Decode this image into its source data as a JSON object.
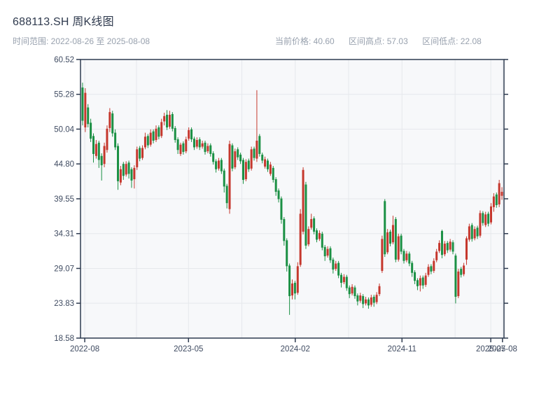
{
  "header": {
    "title": "688113.SH 周K线图",
    "subtitle": "时间范围: 2022-08-26 至 2025-08-08",
    "info": [
      "当前价格: 40.60",
      "区间高点: 57.03",
      "区间低点: 22.08"
    ]
  },
  "chart_data": {
    "type": "candlestick",
    "symbol": "688113.SH",
    "period": "weekly",
    "title": "688113.SH 周K线图",
    "date_start": "2022-08-26",
    "date_end": "2025-08-08",
    "current_price": 40.6,
    "range_high": 57.03,
    "range_low": 22.08,
    "ylim": [
      18.58,
      60.52
    ],
    "grid": true,
    "y_ticks": [
      {
        "value": 60.52,
        "label": "60.52"
      },
      {
        "value": 55.28,
        "label": "55.28"
      },
      {
        "value": 50.04,
        "label": "50.04"
      },
      {
        "value": 44.8,
        "label": "44.80"
      },
      {
        "value": 39.55,
        "label": "39.55"
      },
      {
        "value": 34.31,
        "label": "34.31"
      },
      {
        "value": 29.07,
        "label": "29.07"
      },
      {
        "value": 23.83,
        "label": "23.83"
      },
      {
        "value": 18.58,
        "label": "18.58"
      }
    ],
    "x_ticks": [
      {
        "week": 0.8,
        "label": "2022-08"
      },
      {
        "week": 38.9,
        "label": "2023-05"
      },
      {
        "week": 78.1,
        "label": "2024-02"
      },
      {
        "week": 117.3,
        "label": "2024-11"
      },
      {
        "week": 149.9,
        "label": "2025-07"
      },
      {
        "week": 154.2,
        "label": "2025-08"
      }
    ],
    "x_minor_weeks": [
      19.8,
      58.5,
      97.7,
      136.8
    ],
    "colors": {
      "up": "#c5372d",
      "down": "#1b9044",
      "grid": "#e6e8ec",
      "axis": "#2e3b50",
      "tick_label": "#3f4b61",
      "plot_bg": "#f7f8fa"
    },
    "ohlc_order": [
      "open",
      "high",
      "low",
      "close"
    ],
    "candles": [
      [
        56.3,
        57.03,
        50.6,
        51.3
      ],
      [
        50.3,
        56.2,
        49.6,
        55.5
      ],
      [
        53.3,
        53.8,
        50.3,
        50.8
      ],
      [
        51.0,
        51.6,
        48.1,
        48.6
      ],
      [
        49.0,
        49.4,
        45.0,
        46.3
      ],
      [
        46.0,
        48.4,
        45.6,
        47.8
      ],
      [
        48.0,
        48.3,
        44.2,
        45.4
      ],
      [
        46.0,
        46.4,
        42.3,
        44.6
      ],
      [
        44.8,
        48.0,
        44.3,
        47.5
      ],
      [
        46.9,
        50.6,
        46.5,
        50.1
      ],
      [
        50.2,
        53.2,
        49.6,
        52.6
      ],
      [
        52.4,
        52.8,
        48.9,
        49.4
      ],
      [
        49.5,
        50.0,
        46.9,
        47.3
      ],
      [
        47.5,
        47.9,
        40.9,
        42.2
      ],
      [
        42.0,
        44.5,
        41.6,
        44.0
      ],
      [
        44.8,
        45.1,
        42.4,
        43.0
      ],
      [
        43.2,
        45.2,
        42.9,
        44.8
      ],
      [
        45.0,
        45.3,
        42.6,
        43.3
      ],
      [
        44.0,
        44.3,
        41.2,
        42.3
      ],
      [
        42.5,
        44.6,
        41.1,
        44.2
      ],
      [
        44.3,
        47.4,
        43.9,
        47.0
      ],
      [
        47.2,
        47.5,
        45.2,
        45.6
      ],
      [
        45.7,
        47.6,
        45.4,
        47.2
      ],
      [
        47.3,
        49.5,
        47.0,
        48.9
      ],
      [
        49.0,
        49.3,
        47.2,
        47.6
      ],
      [
        47.7,
        50.0,
        47.4,
        49.5
      ],
      [
        49.7,
        50.0,
        47.9,
        48.3
      ],
      [
        48.4,
        50.6,
        48.1,
        50.1
      ],
      [
        50.3,
        50.6,
        48.5,
        48.9
      ],
      [
        49.0,
        51.6,
        48.7,
        51.1
      ],
      [
        51.2,
        52.5,
        50.6,
        52.0
      ],
      [
        52.2,
        52.9,
        49.9,
        50.3
      ],
      [
        50.4,
        52.8,
        50.1,
        52.2
      ],
      [
        52.3,
        52.6,
        49.7,
        50.1
      ],
      [
        50.2,
        50.5,
        48.0,
        48.4
      ],
      [
        48.5,
        48.8,
        46.3,
        46.9
      ],
      [
        46.3,
        48.0,
        46.0,
        47.7
      ],
      [
        47.9,
        48.2,
        46.2,
        46.6
      ],
      [
        46.7,
        48.9,
        46.4,
        48.5
      ],
      [
        48.6,
        50.3,
        48.3,
        49.9
      ],
      [
        50.0,
        50.3,
        48.1,
        48.5
      ],
      [
        48.6,
        48.9,
        46.9,
        47.3
      ],
      [
        47.4,
        48.8,
        47.1,
        48.4
      ],
      [
        48.5,
        48.8,
        46.9,
        47.3
      ],
      [
        47.4,
        48.3,
        47.1,
        47.9
      ],
      [
        48.0,
        48.3,
        46.2,
        46.6
      ],
      [
        46.7,
        47.9,
        46.4,
        47.5
      ],
      [
        47.6,
        47.9,
        45.9,
        46.3
      ],
      [
        46.4,
        46.7,
        44.7,
        45.1
      ],
      [
        45.2,
        45.5,
        43.5,
        44.0
      ],
      [
        44.1,
        45.7,
        43.8,
        45.3
      ],
      [
        45.4,
        45.7,
        43.3,
        43.7
      ],
      [
        43.8,
        44.1,
        40.5,
        41.4
      ],
      [
        41.5,
        41.8,
        38.1,
        38.9
      ],
      [
        38.0,
        48.3,
        37.3,
        47.8
      ],
      [
        47.6,
        47.9,
        43.7,
        44.1
      ],
      [
        44.3,
        47.1,
        44.0,
        46.7
      ],
      [
        47.0,
        47.3,
        45.4,
        45.8
      ],
      [
        46.2,
        46.5,
        44.8,
        45.2
      ],
      [
        45.4,
        45.7,
        41.8,
        42.4
      ],
      [
        42.5,
        45.5,
        42.2,
        45.1
      ],
      [
        45.3,
        45.6,
        43.6,
        44.0
      ],
      [
        44.1,
        47.4,
        43.8,
        47.0
      ],
      [
        47.1,
        47.4,
        45.3,
        45.7
      ],
      [
        45.6,
        55.9,
        45.1,
        48.3
      ],
      [
        49.0,
        49.3,
        45.9,
        46.3
      ],
      [
        46.2,
        46.5,
        44.9,
        45.3
      ],
      [
        44.4,
        45.9,
        44.1,
        45.5
      ],
      [
        45.3,
        45.6,
        43.6,
        44.0
      ],
      [
        43.3,
        45.1,
        43.0,
        44.7
      ],
      [
        44.2,
        44.5,
        42.0,
        42.4
      ],
      [
        42.5,
        42.8,
        40.0,
        40.6
      ],
      [
        40.8,
        41.1,
        39.0,
        39.5
      ],
      [
        39.6,
        39.9,
        35.8,
        36.4
      ],
      [
        36.5,
        36.8,
        32.5,
        33.2
      ],
      [
        33.3,
        33.6,
        28.6,
        29.4
      ],
      [
        29.5,
        29.8,
        22.08,
        24.9
      ],
      [
        25.0,
        27.4,
        24.4,
        26.8
      ],
      [
        26.9,
        27.2,
        24.4,
        25.3
      ],
      [
        25.4,
        30.0,
        25.1,
        29.4
      ],
      [
        29.6,
        38.0,
        29.3,
        37.3
      ],
      [
        34.6,
        44.3,
        34.2,
        43.9
      ],
      [
        41.7,
        42.1,
        32.0,
        32.5
      ],
      [
        32.7,
        35.4,
        32.4,
        35.0
      ],
      [
        35.2,
        37.3,
        34.9,
        36.5
      ],
      [
        36.6,
        36.9,
        34.2,
        34.6
      ],
      [
        34.8,
        35.1,
        33.0,
        33.4
      ],
      [
        33.5,
        34.8,
        33.2,
        34.4
      ],
      [
        34.3,
        34.6,
        31.8,
        32.2
      ],
      [
        32.3,
        32.6,
        30.2,
        30.9
      ],
      [
        31.0,
        32.4,
        30.7,
        32.0
      ],
      [
        32.1,
        32.4,
        29.9,
        30.3
      ],
      [
        30.4,
        30.7,
        28.3,
        28.9
      ],
      [
        29.0,
        30.2,
        28.7,
        29.8
      ],
      [
        29.9,
        30.2,
        27.6,
        28.0
      ],
      [
        28.1,
        28.4,
        26.2,
        26.9
      ],
      [
        27.0,
        28.2,
        26.7,
        27.8
      ],
      [
        27.8,
        28.1,
        25.7,
        26.1
      ],
      [
        26.2,
        26.5,
        24.6,
        25.2
      ],
      [
        25.3,
        26.7,
        25.0,
        26.3
      ],
      [
        26.2,
        26.5,
        24.5,
        24.9
      ],
      [
        25.0,
        25.3,
        23.5,
        24.1
      ],
      [
        24.2,
        25.4,
        23.9,
        25.0
      ],
      [
        24.9,
        25.2,
        23.1,
        23.7
      ],
      [
        23.8,
        24.8,
        23.5,
        24.4
      ],
      [
        24.4,
        24.7,
        23.0,
        23.5
      ],
      [
        23.6,
        25.1,
        23.3,
        24.7
      ],
      [
        24.8,
        25.1,
        23.3,
        23.9
      ],
      [
        24.0,
        25.5,
        23.7,
        25.1
      ],
      [
        25.2,
        26.8,
        24.9,
        26.4
      ],
      [
        28.7,
        34.0,
        28.4,
        33.5
      ],
      [
        39.2,
        39.5,
        30.8,
        31.2
      ],
      [
        31.5,
        35.0,
        31.2,
        34.5
      ],
      [
        34.6,
        34.9,
        32.4,
        32.8
      ],
      [
        33.0,
        37.0,
        32.7,
        35.6
      ],
      [
        36.5,
        36.8,
        30.0,
        30.4
      ],
      [
        30.4,
        34.3,
        30.1,
        33.9
      ],
      [
        34.0,
        34.3,
        31.2,
        31.6
      ],
      [
        31.7,
        32.0,
        29.8,
        30.2
      ],
      [
        30.3,
        31.7,
        30.0,
        31.3
      ],
      [
        31.3,
        31.6,
        29.4,
        29.8
      ],
      [
        29.9,
        30.2,
        27.8,
        28.4
      ],
      [
        28.5,
        28.8,
        26.7,
        27.2
      ],
      [
        27.3,
        27.6,
        25.8,
        26.4
      ],
      [
        26.5,
        28.0,
        25.6,
        27.6
      ],
      [
        27.7,
        28.0,
        26.0,
        26.5
      ],
      [
        26.6,
        28.4,
        26.3,
        28.0
      ],
      [
        28.1,
        29.7,
        27.8,
        29.3
      ],
      [
        29.4,
        29.7,
        28.2,
        28.6
      ],
      [
        28.7,
        30.6,
        28.4,
        30.2
      ],
      [
        30.3,
        32.0,
        30.0,
        31.6
      ],
      [
        31.7,
        33.3,
        31.4,
        32.9
      ],
      [
        34.7,
        34.9,
        30.6,
        31.1
      ],
      [
        31.2,
        33.2,
        30.9,
        32.8
      ],
      [
        32.9,
        33.2,
        31.4,
        31.8
      ],
      [
        31.9,
        33.5,
        31.6,
        33.1
      ],
      [
        33.0,
        33.3,
        31.2,
        31.6
      ],
      [
        31.0,
        31.3,
        23.8,
        24.8
      ],
      [
        24.9,
        29.0,
        24.6,
        28.6
      ],
      [
        29.0,
        29.3,
        27.7,
        28.1
      ],
      [
        28.2,
        29.9,
        27.9,
        29.5
      ],
      [
        30.4,
        33.9,
        29.6,
        33.6
      ],
      [
        33.4,
        35.8,
        33.1,
        35.4
      ],
      [
        35.6,
        35.9,
        33.1,
        33.5
      ],
      [
        33.6,
        35.4,
        33.3,
        35.0
      ],
      [
        35.2,
        35.5,
        33.5,
        33.9
      ],
      [
        34.0,
        37.8,
        33.7,
        37.4
      ],
      [
        37.4,
        37.7,
        35.5,
        35.9
      ],
      [
        35.6,
        37.6,
        35.3,
        37.2
      ],
      [
        37.3,
        37.6,
        35.4,
        35.8
      ],
      [
        36.0,
        38.9,
        35.7,
        38.4
      ],
      [
        38.3,
        40.4,
        37.6,
        39.9
      ],
      [
        40.2,
        40.5,
        38.2,
        38.6
      ],
      [
        38.7,
        42.4,
        38.3,
        41.9
      ],
      [
        40.0,
        41.3,
        39.4,
        40.6
      ]
    ]
  }
}
